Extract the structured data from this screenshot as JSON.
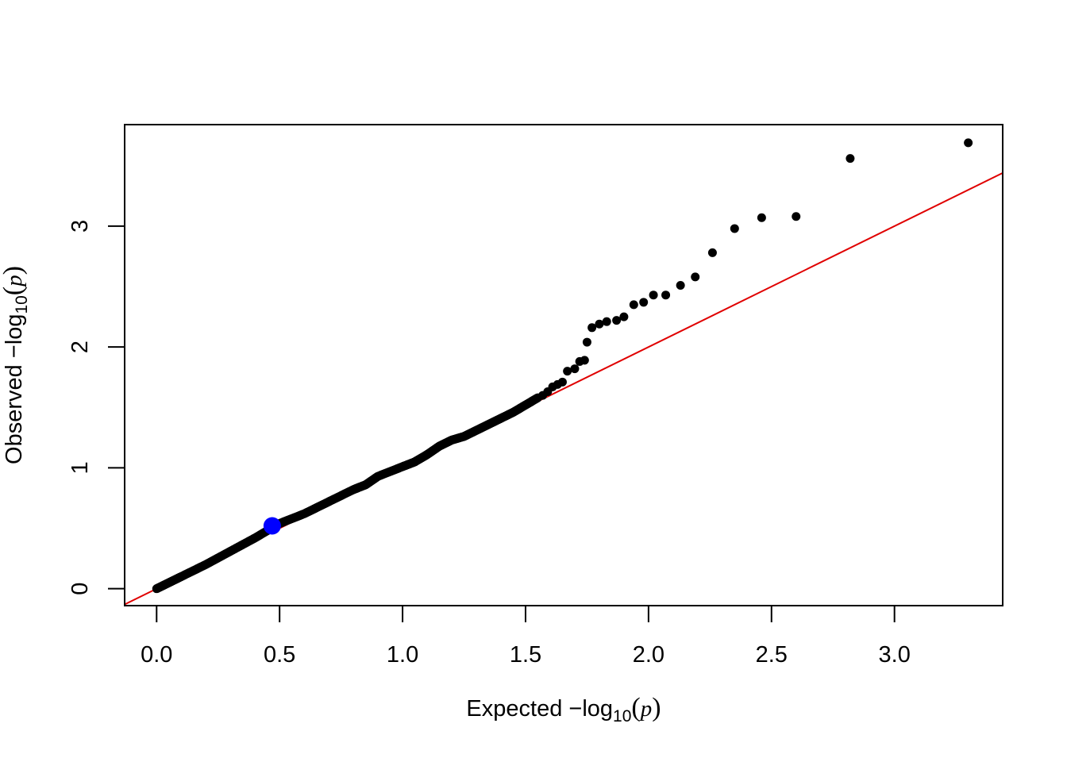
{
  "chart_data": {
    "type": "scatter",
    "title": "",
    "xlabel": {
      "prefix": "Expected  ",
      "minus": "−",
      "log": "log",
      "base": "10",
      "open": "(",
      "var": "p",
      "close": ")"
    },
    "ylabel": {
      "prefix": "Observed  ",
      "minus": "−",
      "log": "log",
      "base": "10",
      "open": "(",
      "var": "p",
      "close": ")"
    },
    "xlim": [
      -0.13,
      3.44
    ],
    "ylim": [
      -0.14,
      3.84
    ],
    "x_ticks": [
      0.0,
      0.5,
      1.0,
      1.5,
      2.0,
      2.5,
      3.0
    ],
    "x_tick_labels": [
      "0.0",
      "0.5",
      "1.0",
      "1.5",
      "2.0",
      "2.5",
      "3.0"
    ],
    "y_ticks": [
      0,
      1,
      2,
      3
    ],
    "y_tick_labels": [
      "0",
      "1",
      "2",
      "3"
    ],
    "reference_line": {
      "slope": 1,
      "intercept": 0,
      "color": "#e00000"
    },
    "point_color": "#000000",
    "highlight": {
      "x": 0.47,
      "y": 0.52,
      "color": "#0000ff"
    },
    "series": [
      {
        "kind": "dense_trend",
        "x": [
          0.0,
          0.05,
          0.1,
          0.2,
          0.3,
          0.4,
          0.5,
          0.6,
          0.7,
          0.8,
          0.85,
          0.9,
          1.0,
          1.05,
          1.1,
          1.15,
          1.2,
          1.25,
          1.3,
          1.35,
          1.4,
          1.45,
          1.5,
          1.55
        ],
        "y": [
          0.0,
          0.05,
          0.1,
          0.2,
          0.31,
          0.42,
          0.54,
          0.62,
          0.72,
          0.82,
          0.86,
          0.93,
          1.01,
          1.05,
          1.11,
          1.18,
          1.23,
          1.26,
          1.31,
          1.36,
          1.41,
          1.46,
          1.52,
          1.58
        ]
      },
      {
        "kind": "tail",
        "x": [
          1.57,
          1.59,
          1.61,
          1.63,
          1.65,
          1.67,
          1.7,
          1.72,
          1.74,
          1.75,
          1.77,
          1.8,
          1.83,
          1.87,
          1.9,
          1.94,
          1.98,
          2.02,
          2.07,
          2.13,
          2.19,
          2.26,
          2.35,
          2.46,
          2.6,
          2.82,
          3.3
        ],
        "y": [
          1.6,
          1.63,
          1.67,
          1.69,
          1.71,
          1.8,
          1.82,
          1.88,
          1.89,
          2.04,
          2.16,
          2.19,
          2.21,
          2.22,
          2.25,
          2.35,
          2.37,
          2.43,
          2.43,
          2.51,
          2.58,
          2.78,
          2.98,
          3.07,
          3.08,
          3.56,
          3.69
        ]
      }
    ]
  }
}
